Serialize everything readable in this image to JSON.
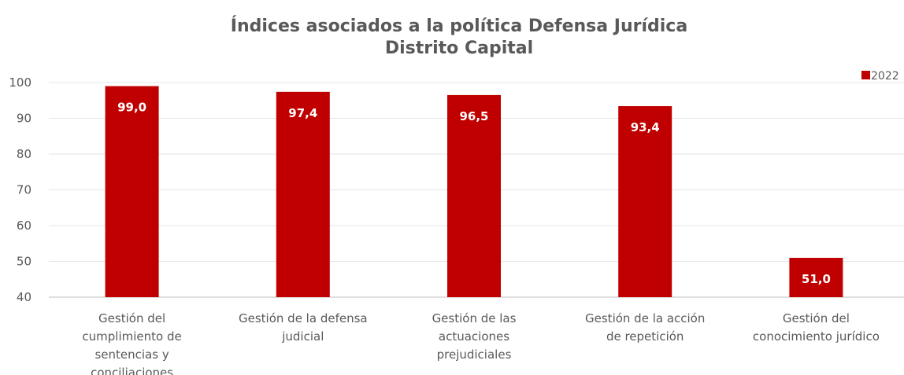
{
  "chart_data": {
    "type": "bar",
    "title": [
      "Índices asociados a la política Defensa Jurídica",
      "Distrito Capital"
    ],
    "categories": [
      [
        "Gestión del",
        "cumplimiento de",
        "sentencias y",
        "conciliaciones"
      ],
      [
        "Gestión de la defensa",
        "judicial"
      ],
      [
        "Gestión de las",
        "actuaciones",
        "prejudiciales"
      ],
      [
        "Gestión de la acción",
        "de repetición"
      ],
      [
        "Gestión del",
        "conocimiento jurídico"
      ]
    ],
    "series": [
      {
        "name": "2022",
        "values": [
          99.0,
          97.4,
          96.5,
          93.4,
          51.0
        ],
        "color": "#c00000"
      }
    ],
    "data_labels": [
      "99,0",
      "97,4",
      "96,5",
      "93,4",
      "51,0"
    ],
    "ylim": [
      40,
      100
    ],
    "yticks": [
      40,
      50,
      60,
      70,
      80,
      90,
      100
    ],
    "grid": true,
    "legend": "top-right"
  }
}
